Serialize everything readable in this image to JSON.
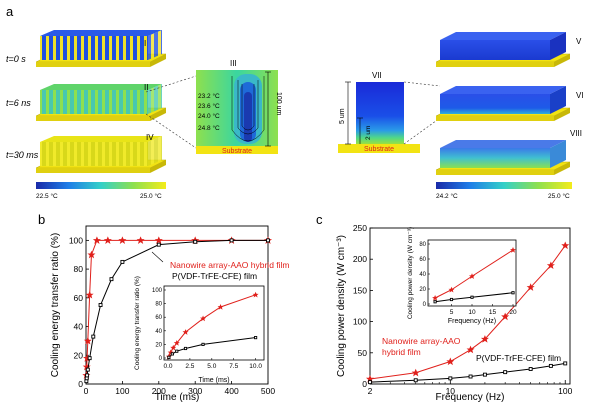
{
  "panels": {
    "a": "a",
    "b": "b",
    "c": "c"
  },
  "panel_a": {
    "time_labels": [
      "t=0 s",
      "t=6 ns",
      "t=30 ms"
    ],
    "roman": {
      "I": "I",
      "II": "II",
      "III": "III",
      "IV": "IV",
      "V": "V",
      "VI": "VI",
      "VII": "VII",
      "VIII": "VIII"
    },
    "contour_labels": [
      "23.2 °C",
      "23.6 °C",
      "24.0 °C",
      "24.8 °C"
    ],
    "height_label": "100 um",
    "substrate_label": "Substrate",
    "thickness_5": "5 um",
    "thickness_2": "2 um",
    "colorbar_left": {
      "min": "22.5 °C",
      "max": "25.0 °C"
    },
    "colorbar_right": {
      "min": "24.2 °C",
      "max": "25.0 °C"
    },
    "colors": {
      "substrate": "#f2e313",
      "nano_blue": "#1f4fe0",
      "nano_green": "#5fd46a",
      "nano_yellow": "#dfe21a"
    }
  },
  "chart_b": {
    "type": "line",
    "xlabel": "Time (ms)",
    "ylabel": "Cooling energy transfer ratio (%)",
    "xlim": [
      0,
      500
    ],
    "ylim": [
      0,
      110
    ],
    "xticks": [
      0,
      100,
      200,
      300,
      400,
      500
    ],
    "yticks": [
      0,
      20,
      40,
      60,
      80,
      100
    ],
    "series": [
      {
        "name": "Nanowire array-AAO hybrid film",
        "color": "#e0201b",
        "marker": "star",
        "x": [
          1,
          2,
          3,
          5,
          10,
          15,
          30,
          60,
          100,
          150,
          200,
          300,
          400,
          500
        ],
        "y": [
          6,
          12,
          18,
          30,
          62,
          90,
          100,
          100,
          100,
          100,
          100,
          100,
          100,
          100
        ]
      },
      {
        "name": "P(VDF-TrFE-CFE) film",
        "color": "#000000",
        "marker": "square",
        "x": [
          1,
          2,
          3,
          5,
          10,
          20,
          40,
          70,
          100,
          200,
          300,
          400,
          500
        ],
        "y": [
          2,
          4,
          6,
          10,
          18,
          33,
          55,
          73,
          85,
          97,
          99,
          100,
          100
        ]
      }
    ],
    "inset": {
      "xlabel": "Time (ms)",
      "ylabel": "Cooling energy transfer ratio (%)",
      "xlim": [
        0,
        10.5
      ],
      "ylim": [
        0,
        100
      ],
      "xticks": [
        "0.0",
        "2.5",
        "5.0",
        "7.5",
        "10.0"
      ],
      "yticks": [
        "0",
        "20",
        "40",
        "60",
        "80",
        "100"
      ],
      "red_x": [
        0.1,
        0.3,
        0.6,
        1.0,
        2.0,
        4.0,
        6.0,
        10.0
      ],
      "red_y": [
        2,
        8,
        15,
        22,
        38,
        58,
        75,
        93
      ],
      "black_x": [
        0.1,
        0.5,
        1.0,
        2.0,
        4.0,
        10.0
      ],
      "black_y": [
        1,
        6,
        10,
        14,
        20,
        30
      ]
    }
  },
  "chart_c": {
    "type": "line",
    "xlabel": "Frequency (Hz)",
    "ylabel": "Cooling power density (W cm⁻³)",
    "xscale": "log",
    "xlim": [
      2,
      110
    ],
    "ylim": [
      0,
      250
    ],
    "xticks": [
      "2",
      "10",
      "100"
    ],
    "yticks": [
      "0",
      "50",
      "100",
      "150",
      "200",
      "250"
    ],
    "series": [
      {
        "name": "Nanowire array-AAO hybrid film",
        "color": "#e0201b",
        "marker": "star",
        "x": [
          2,
          5,
          10,
          15,
          20,
          30,
          50,
          75,
          100
        ],
        "y": [
          8,
          18,
          36,
          55,
          72,
          108,
          155,
          190,
          222
        ]
      },
      {
        "name": "P(VDF-TrFE-CFE) film",
        "color": "#000000",
        "marker": "square",
        "x": [
          2,
          5,
          10,
          15,
          20,
          30,
          50,
          75,
          100
        ],
        "y": [
          3,
          6,
          9,
          12,
          15,
          19,
          24,
          29,
          33
        ]
      }
    ],
    "legend_red": [
      "Nanowire array-AAO",
      "hybrid film"
    ],
    "inset": {
      "xlabel": "Frequency (Hz)",
      "ylabel": "Cooling power density (W cm⁻³)",
      "xlim": [
        0,
        20
      ],
      "ylim": [
        0,
        80
      ],
      "xticks": [
        "5",
        "10",
        "15",
        "20"
      ],
      "yticks": [
        "0",
        "20",
        "40",
        "60",
        "80"
      ],
      "red_x": [
        1,
        5,
        10,
        20
      ],
      "red_y": [
        8,
        19,
        37,
        72
      ],
      "black_x": [
        1,
        5,
        10,
        20
      ],
      "black_y": [
        3,
        6,
        9,
        15
      ]
    }
  }
}
